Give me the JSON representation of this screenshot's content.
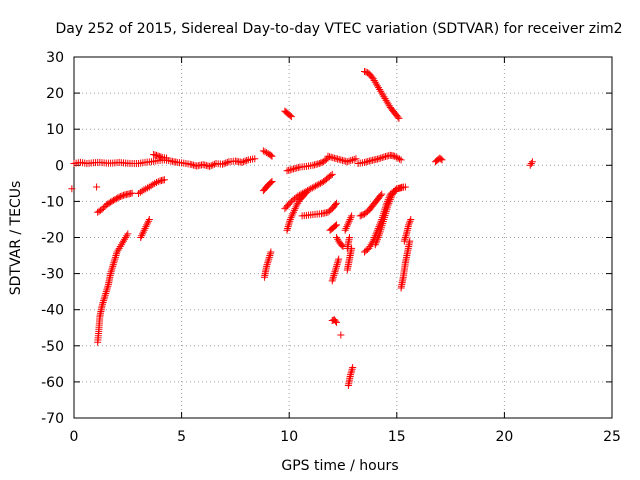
{
  "chart_data": {
    "type": "scatter",
    "title": "Day 252 of 2015, Sidereal Day-to-day VTEC variation (SDTVAR) for receiver zim2",
    "xlabel": "GPS time / hours",
    "ylabel": "SDTVAR / TECUs",
    "xlim": [
      0,
      25
    ],
    "ylim": [
      -70,
      30
    ],
    "xticks": [
      0,
      5,
      10,
      15,
      20,
      25
    ],
    "yticks": [
      -70,
      -60,
      -50,
      -40,
      -30,
      -20,
      -10,
      0,
      10,
      20,
      30
    ],
    "grid": true,
    "legend": "none",
    "marker": "plus",
    "color": "#ff0000",
    "segments": [
      {
        "x": [
          0.0,
          0.3,
          0.6,
          0.9,
          1.2,
          1.5,
          1.8,
          2.1,
          2.4,
          2.7,
          3.0,
          3.3,
          3.6,
          3.9,
          4.2,
          4.5,
          4.8,
          5.1,
          5.4,
          5.7,
          6.0,
          6.3,
          6.6,
          6.9,
          7.2,
          7.5,
          7.8,
          8.1,
          8.4
        ],
        "y": [
          0.5,
          0.8,
          0.5,
          0.7,
          0.8,
          0.6,
          0.6,
          0.8,
          0.6,
          0.5,
          0.5,
          0.8,
          1.0,
          1.3,
          1.5,
          1.2,
          0.8,
          0.6,
          0.3,
          -0.2,
          0.2,
          -0.3,
          0.5,
          0.3,
          1.0,
          1.2,
          0.8,
          1.5,
          1.8
        ]
      },
      {
        "x": [
          3.7,
          3.9,
          4.1,
          4.3
        ],
        "y": [
          3.0,
          2.6,
          2.2,
          2.0
        ]
      },
      {
        "x": [
          -0.1
        ],
        "y": [
          -6.5
        ]
      },
      {
        "x": [
          1.05
        ],
        "y": [
          -6.0
        ]
      },
      {
        "x": [
          1.1,
          1.3,
          1.5,
          1.7,
          1.9,
          2.1,
          2.3,
          2.5,
          2.7
        ],
        "y": [
          -13.0,
          -12.2,
          -11.0,
          -10.2,
          -9.5,
          -8.8,
          -8.3,
          -8.0,
          -7.7
        ]
      },
      {
        "x": [
          3.0,
          3.25,
          3.5,
          3.75,
          4.0,
          4.2
        ],
        "y": [
          -7.8,
          -6.8,
          -6.0,
          -5.0,
          -4.3,
          -4.0
        ]
      },
      {
        "x": [
          3.1,
          3.3,
          3.5
        ],
        "y": [
          -20.0,
          -17.5,
          -15.0
        ]
      },
      {
        "x": [
          1.1,
          1.15,
          1.2,
          1.3,
          1.4,
          1.5,
          1.6,
          1.7,
          1.8,
          1.9,
          2.0,
          2.1,
          2.2,
          2.3,
          2.4,
          2.5
        ],
        "y": [
          -49.0,
          -46.0,
          -42.0,
          -39.0,
          -37.0,
          -35.0,
          -33.0,
          -30.0,
          -28.0,
          -26.0,
          -24.0,
          -23.0,
          -22.0,
          -21.0,
          -20.0,
          -19.0
        ]
      },
      {
        "x": [
          8.8,
          8.95,
          9.1,
          9.2
        ],
        "y": [
          4.0,
          3.5,
          3.0,
          2.5
        ]
      },
      {
        "x": [
          8.8,
          8.95,
          9.1,
          9.2
        ],
        "y": [
          -7.0,
          -6.0,
          -5.0,
          -4.5
        ]
      },
      {
        "x": [
          8.85,
          8.95,
          9.05,
          9.15
        ],
        "y": [
          -31.0,
          -28.0,
          -26.0,
          -24.0
        ]
      },
      {
        "x": [
          9.8,
          9.9,
          10.0,
          10.1
        ],
        "y": [
          15.0,
          14.5,
          14.0,
          13.5
        ]
      },
      {
        "x": [
          9.9,
          10.2,
          10.5,
          10.8,
          11.1,
          11.4,
          11.6,
          11.8
        ],
        "y": [
          -1.5,
          -1.0,
          -0.5,
          -0.3,
          0.0,
          0.5,
          1.0,
          2.0
        ]
      },
      {
        "x": [
          9.9,
          10.05,
          10.2,
          10.35,
          10.5,
          10.65,
          10.8
        ],
        "y": [
          -18.0,
          -15.0,
          -13.0,
          -11.0,
          -9.5,
          -8.5,
          -7.5
        ]
      },
      {
        "x": [
          9.8,
          10.1,
          10.4,
          10.7,
          11.0,
          11.3,
          11.6,
          11.8,
          12.0
        ],
        "y": [
          -12.0,
          -10.0,
          -8.5,
          -7.5,
          -6.5,
          -5.5,
          -4.5,
          -3.5,
          -2.5
        ]
      },
      {
        "x": [
          10.6,
          10.9,
          11.2,
          11.5,
          11.8,
          12.0,
          12.2
        ],
        "y": [
          -14.0,
          -13.8,
          -13.6,
          -13.4,
          -13.0,
          -12.0,
          -10.5
        ]
      },
      {
        "x": [
          11.8,
          12.1,
          12.4,
          12.7,
          13.1
        ],
        "y": [
          2.5,
          2.0,
          1.5,
          1.0,
          1.8
        ]
      },
      {
        "x": [
          11.9,
          12.0,
          12.1,
          12.2
        ],
        "y": [
          -18.0,
          -17.5,
          -17.0,
          -16.5
        ]
      },
      {
        "x": [
          12.2,
          12.35,
          12.5
        ],
        "y": [
          -20.0,
          -21.5,
          -22.5
        ]
      },
      {
        "x": [
          12.0,
          12.1,
          12.2,
          12.3
        ],
        "y": [
          -32.0,
          -30.0,
          -28.0,
          -26.0
        ]
      },
      {
        "x": [
          12.0,
          12.1,
          12.2
        ],
        "y": [
          -43.0,
          -42.8,
          -43.5
        ]
      },
      {
        "x": [
          12.4
        ],
        "y": [
          -47.0
        ]
      },
      {
        "x": [
          12.7,
          12.8,
          12.9
        ],
        "y": [
          -29.0,
          -26.0,
          -23.0
        ]
      },
      {
        "x": [
          12.7,
          12.8
        ],
        "y": [
          -23.0,
          -20.0
        ]
      },
      {
        "x": [
          12.6,
          12.75,
          12.9
        ],
        "y": [
          -18.0,
          -16.0,
          -14.0
        ]
      },
      {
        "x": [
          12.75,
          12.85,
          12.95
        ],
        "y": [
          -61.0,
          -58.0,
          -56.0
        ]
      },
      {
        "x": [
          13.2,
          13.5,
          13.8,
          14.1,
          14.4,
          14.7,
          14.9,
          15.2
        ],
        "y": [
          0.5,
          0.8,
          1.3,
          1.7,
          2.3,
          2.8,
          2.5,
          1.5
        ]
      },
      {
        "x": [
          13.5,
          13.7,
          13.9,
          14.1,
          14.3,
          14.5,
          14.7,
          14.9,
          15.1
        ],
        "y": [
          26.0,
          25.5,
          24.0,
          22.0,
          20.0,
          18.0,
          16.0,
          14.5,
          13.0
        ]
      },
      {
        "x": [
          13.3,
          13.5,
          13.7,
          13.9,
          14.1,
          14.3
        ],
        "y": [
          -14.0,
          -13.5,
          -12.5,
          -11.0,
          -9.5,
          -8.0
        ]
      },
      {
        "x": [
          13.5,
          13.7,
          13.9,
          14.1,
          14.3,
          14.5,
          14.7,
          15.0,
          15.4
        ],
        "y": [
          -24.0,
          -23.0,
          -21.0,
          -18.0,
          -15.0,
          -11.0,
          -8.0,
          -6.5,
          -6.0
        ]
      },
      {
        "x": [
          14.0,
          14.2,
          14.4,
          14.6,
          14.8,
          15.0,
          15.3
        ],
        "y": [
          -22.0,
          -19.0,
          -15.0,
          -11.0,
          -8.0,
          -6.5,
          -6.0
        ]
      },
      {
        "x": [
          15.35,
          15.45,
          15.55,
          15.65
        ],
        "y": [
          -21.0,
          -19.0,
          -16.5,
          -15.0
        ]
      },
      {
        "x": [
          15.2,
          15.3,
          15.4,
          15.5,
          15.6
        ],
        "y": [
          -34.0,
          -31.0,
          -27.0,
          -24.0,
          -21.0
        ]
      },
      {
        "x": [
          16.8,
          16.9,
          17.0,
          17.1
        ],
        "y": [
          1.0,
          1.5,
          2.0,
          1.5
        ]
      },
      {
        "x": [
          21.2,
          21.3
        ],
        "y": [
          0.0,
          1.0
        ]
      }
    ]
  }
}
